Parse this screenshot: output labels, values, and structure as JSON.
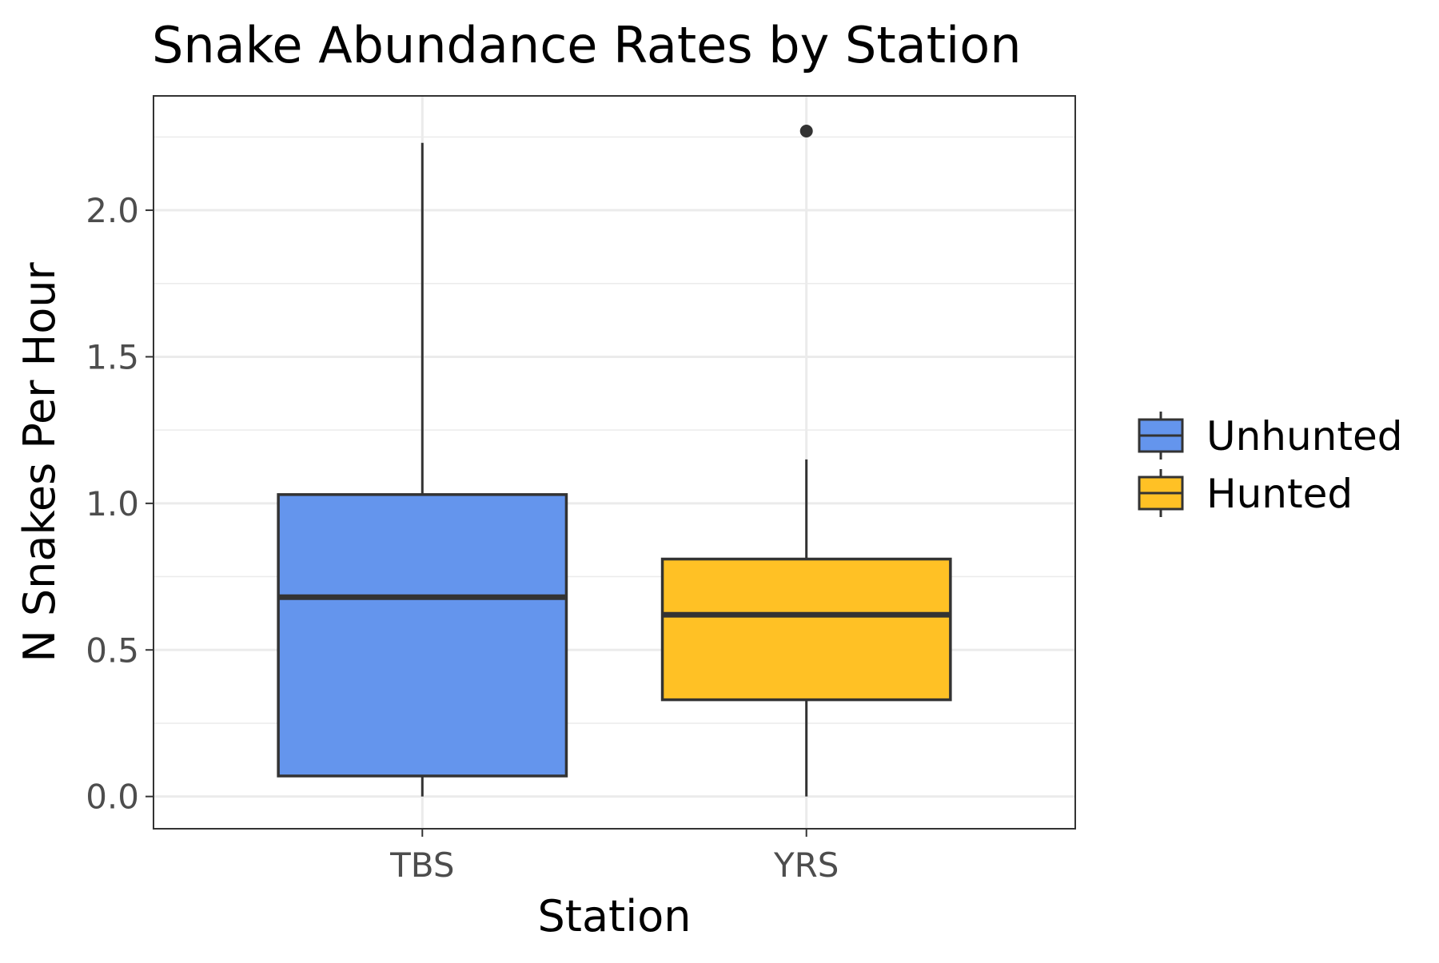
{
  "chart_data": {
    "type": "box",
    "title": "Snake Abundance Rates by Station",
    "xlabel": "Station",
    "ylabel": "N Snakes Per Hour",
    "ylim": [
      -0.11,
      2.39
    ],
    "yticks": [
      "0.0",
      "0.5",
      "1.0",
      "1.5",
      "2.0"
    ],
    "grid": true,
    "legend_position": "right",
    "categories": [
      "TBS",
      "YRS"
    ],
    "series": [
      {
        "name": "Unhunted",
        "category": "TBS",
        "color": "#6495ED",
        "whisker_low": 0.0,
        "q1": 0.07,
        "median": 0.68,
        "q3": 1.03,
        "whisker_high": 2.23,
        "outliers": []
      },
      {
        "name": "Hunted",
        "category": "YRS",
        "color": "#FFC125",
        "whisker_low": 0.0,
        "q1": 0.33,
        "median": 0.62,
        "q3": 0.81,
        "whisker_high": 1.15,
        "outliers": [
          2.27
        ]
      }
    ],
    "colors": {
      "outline": "#333333",
      "grid": "#ebebeb",
      "panel_border": "#333333"
    }
  }
}
